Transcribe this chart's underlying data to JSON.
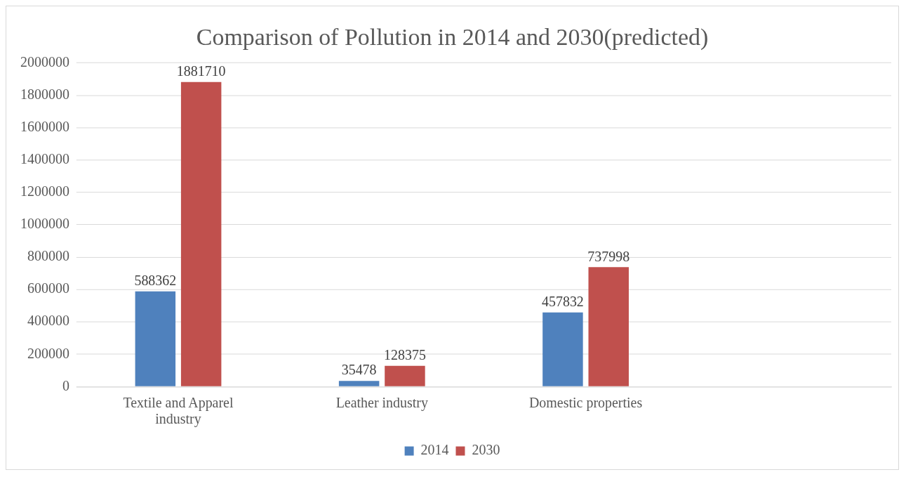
{
  "chart_data": {
    "type": "bar",
    "title": "Comparison of Pollution in 2014 and 2030(predicted)",
    "categories": [
      "Textile and Apparel industry",
      "Leather industry",
      "Domestic properties",
      null
    ],
    "series": [
      {
        "name": "2014",
        "color": "#4f81bd",
        "values": [
          588362,
          35478,
          457832,
          null
        ]
      },
      {
        "name": "2030",
        "color": "#c0504d",
        "values": [
          1881710,
          128375,
          737998,
          null
        ]
      }
    ],
    "ylim": [
      0,
      2000000
    ],
    "yticks": [
      0,
      200000,
      400000,
      600000,
      800000,
      1000000,
      1200000,
      1400000,
      1600000,
      1800000,
      2000000
    ],
    "grid": "y",
    "legend": "bottom",
    "data_labels": true
  }
}
